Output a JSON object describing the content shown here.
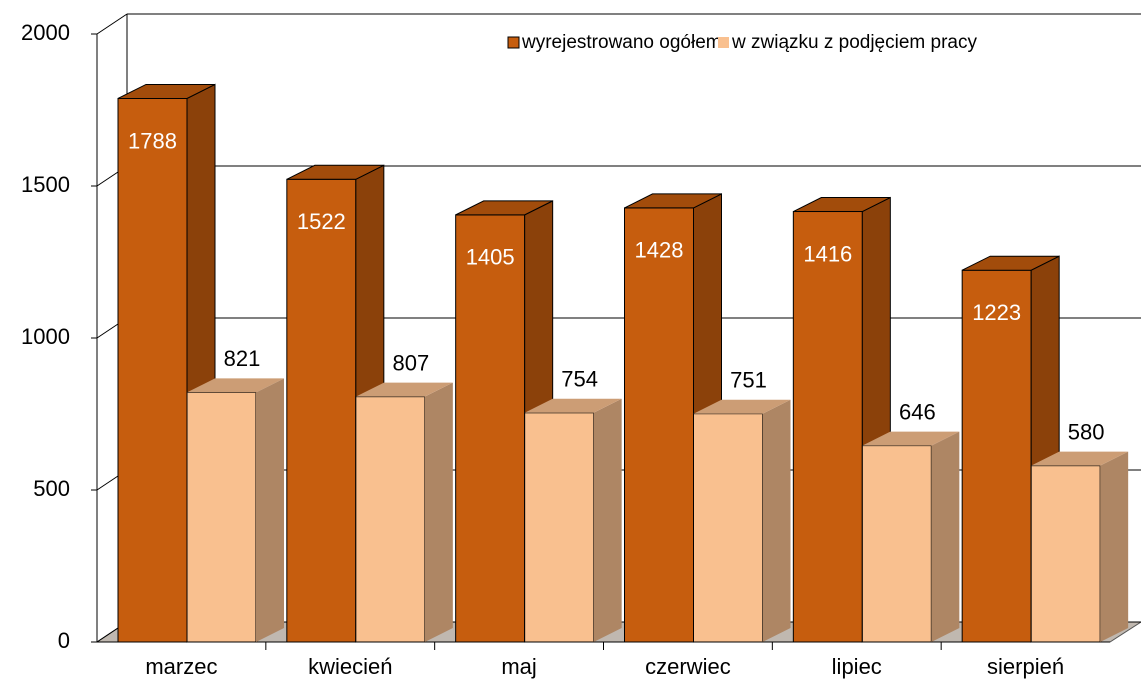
{
  "chart_data": {
    "type": "bar3d",
    "categories": [
      "marzec",
      "kwiecień",
      "maj",
      "czerwiec",
      "lipiec",
      "sierpień"
    ],
    "series": [
      {
        "name": "wyrejestrowano ogółem",
        "color": "#c65d0e",
        "values": [
          1788,
          1522,
          1405,
          1428,
          1416,
          1223
        ]
      },
      {
        "name": "w związku z podjęciem pracy",
        "color": "#f9c08f",
        "values": [
          821,
          807,
          754,
          751,
          646,
          580
        ]
      }
    ],
    "ylim": [
      0,
      2000
    ],
    "yticks": [
      0,
      500,
      1000,
      1500,
      2000
    ],
    "grid": true,
    "legend": "top-right"
  }
}
